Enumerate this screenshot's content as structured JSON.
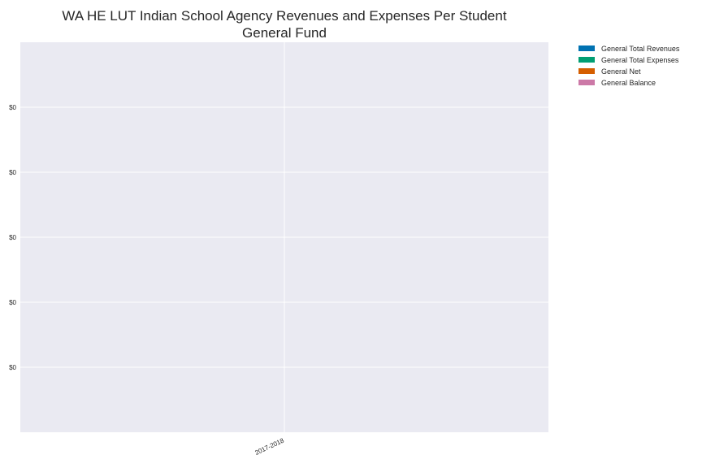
{
  "chart_data": {
    "type": "bar",
    "title": "WA HE LUT Indian School Agency Revenues and Expenses Per Student",
    "subtitle": "General Fund",
    "categories": [
      "2017-2018"
    ],
    "series": [
      {
        "name": "General Total Revenues",
        "values": [
          0
        ],
        "color": "#0072B2"
      },
      {
        "name": "General Total Expenses",
        "values": [
          0
        ],
        "color": "#009E73"
      },
      {
        "name": "General Net",
        "values": [
          0
        ],
        "color": "#D55E00"
      },
      {
        "name": "General Balance",
        "values": [
          0
        ],
        "color": "#CC79A7"
      }
    ],
    "y_tick_labels": [
      "$0",
      "$0",
      "$0",
      "$0",
      "$0"
    ],
    "ylim": [
      -0.06,
      0.06
    ],
    "y_ticks": [
      0.04,
      0.02,
      0.0,
      -0.02,
      -0.04
    ],
    "grid": true,
    "legend_position": "outside-top-right",
    "colors": {
      "plot_background": "#EAEAF2",
      "grid": "#FFFFFF"
    }
  }
}
